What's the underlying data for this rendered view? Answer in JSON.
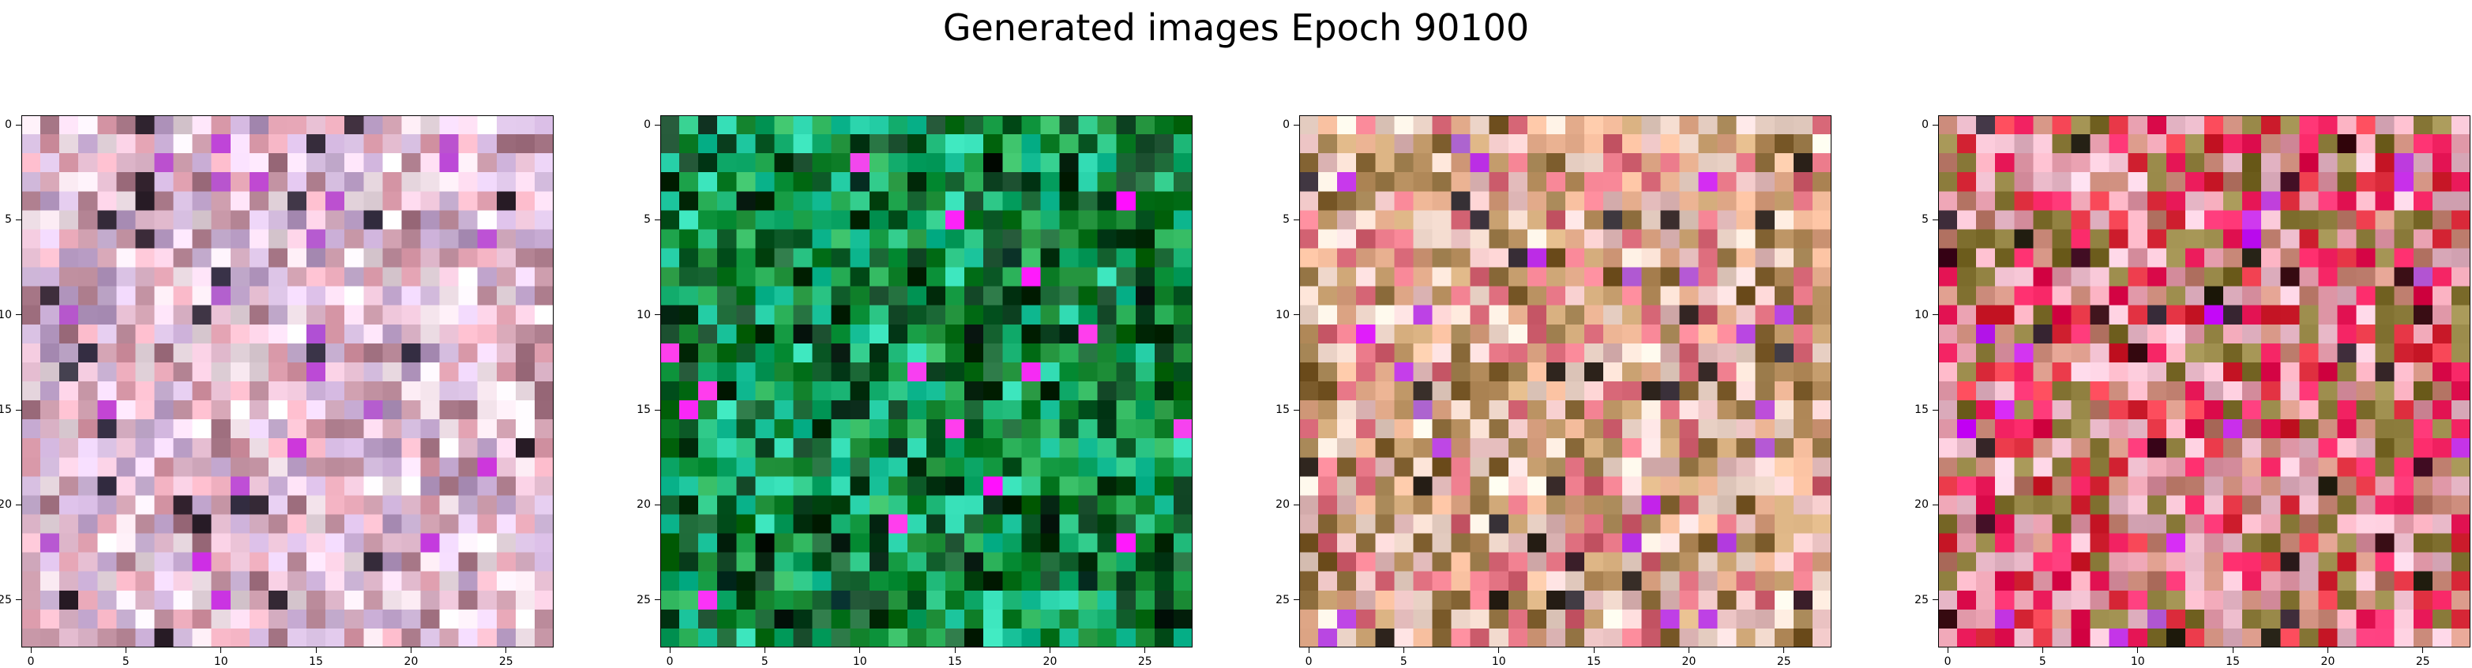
{
  "title": "Generated images Epoch 90100",
  "chart_data": [
    {
      "type": "heatmap",
      "grid": [
        28,
        28
      ],
      "palette": "pastel-pink-lavender",
      "base_colors": [
        "#f0c8dc",
        "#dcc4e6",
        "#e8a8b8",
        "#c4a8d0",
        "#f4e4ec",
        "#b88898"
      ],
      "x_ticks": [
        0,
        5,
        10,
        15,
        20,
        25
      ],
      "y_ticks": [
        0,
        5,
        10,
        15,
        20,
        25
      ],
      "xlim": [
        -0.5,
        27.5
      ],
      "ylim": [
        27.5,
        -0.5
      ]
    },
    {
      "type": "heatmap",
      "grid": [
        28,
        28
      ],
      "palette": "green-teal",
      "base_colors": [
        "#0a7a24",
        "#0f5c2a",
        "#22a850",
        "#1fc8a0",
        "#063a1a",
        "#16b070"
      ],
      "x_ticks": [
        0,
        5,
        10,
        15,
        20,
        25
      ],
      "y_ticks": [
        0,
        5,
        10,
        15,
        20,
        25
      ],
      "xlim": [
        -0.5,
        27.5
      ],
      "ylim": [
        27.5,
        -0.5
      ]
    },
    {
      "type": "heatmap",
      "grid": [
        28,
        28
      ],
      "palette": "peach-pink-olive",
      "base_colors": [
        "#e8b090",
        "#f0c8c8",
        "#c8a070",
        "#e07080",
        "#8a6a3a",
        "#f4dcd0"
      ],
      "x_ticks": [
        0,
        5,
        10,
        15,
        20,
        25
      ],
      "y_ticks": [
        0,
        5,
        10,
        15,
        20,
        25
      ],
      "xlim": [
        -0.5,
        27.5
      ],
      "ylim": [
        27.5,
        -0.5
      ]
    },
    {
      "type": "heatmap",
      "grid": [
        28,
        28
      ],
      "palette": "pink-red-olive",
      "base_colors": [
        "#e8a0b0",
        "#f0c0d0",
        "#e03040",
        "#f02060",
        "#8a7a3a",
        "#c88878"
      ],
      "x_ticks": [
        0,
        5,
        10,
        15,
        20,
        25
      ],
      "y_ticks": [
        0,
        5,
        10,
        15,
        20,
        25
      ],
      "xlim": [
        -0.5,
        27.5
      ],
      "ylim": [
        27.5,
        -0.5
      ]
    }
  ]
}
